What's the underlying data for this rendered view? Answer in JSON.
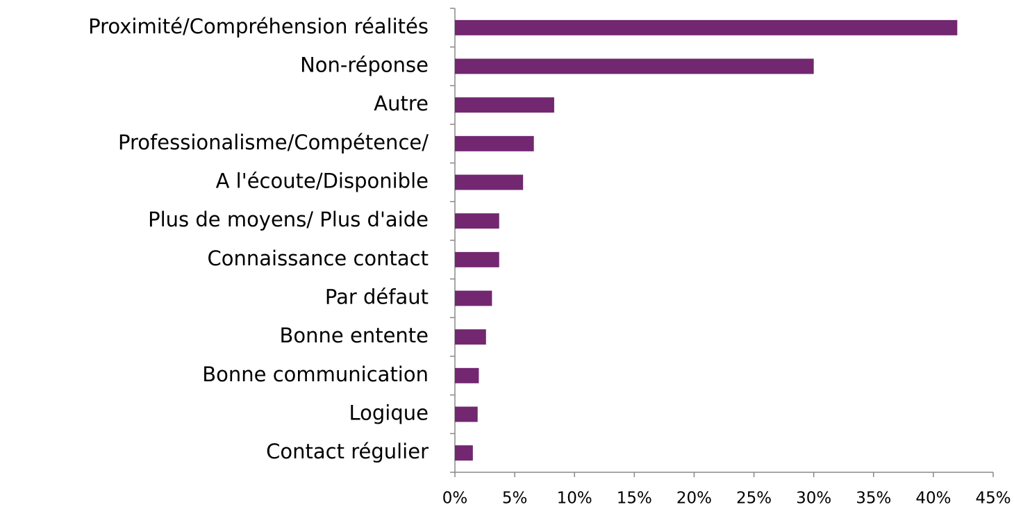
{
  "chart_data": {
    "type": "bar",
    "orientation": "horizontal",
    "categories": [
      "Proximité/Compréhension réalités",
      "Non-réponse",
      "Autre",
      "Professionalisme/Compétence/",
      "A l'écoute/Disponible",
      "Plus de moyens/ Plus d'aide",
      "Connaissance contact",
      "Par défaut",
      "Bonne entente",
      "Bonne communication",
      "Logique",
      "Contact régulier"
    ],
    "values": [
      42,
      30,
      8.3,
      6.6,
      5.7,
      3.7,
      3.7,
      3.1,
      2.6,
      2.0,
      1.9,
      1.5
    ],
    "color": "#722770",
    "xlim": [
      0,
      45
    ],
    "xticks": [
      {
        "value": 0,
        "label": "0%"
      },
      {
        "value": 5,
        "label": "5%"
      },
      {
        "value": 10,
        "label": "10%"
      },
      {
        "value": 15,
        "label": "15%"
      },
      {
        "value": 20,
        "label": "20%"
      },
      {
        "value": 25,
        "label": "25%"
      },
      {
        "value": 30,
        "label": "30%"
      },
      {
        "value": 35,
        "label": "35%"
      },
      {
        "value": 40,
        "label": "40%"
      },
      {
        "value": 45,
        "label": "45%"
      }
    ],
    "grid": false
  }
}
